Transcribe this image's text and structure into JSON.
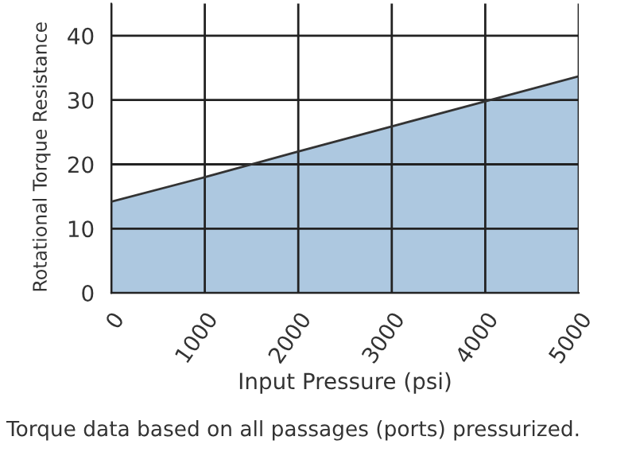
{
  "chart_data": {
    "type": "area",
    "xlabel": "Input Pressure (psi)",
    "ylabel": "Rotational Torque Resistance",
    "x": [
      0,
      1000,
      2000,
      3000,
      4000,
      5000
    ],
    "series": [
      {
        "color": "#adc8e0",
        "values": [
          14.2,
          18.0,
          22.0,
          25.9,
          29.8,
          33.7
        ]
      }
    ],
    "xlim": [
      0,
      5000
    ],
    "xticks": [
      0,
      1000,
      2000,
      3000,
      4000,
      5000
    ],
    "ylim": [
      0,
      45
    ],
    "yticks": [
      0,
      10,
      20,
      30,
      40
    ],
    "grid": true,
    "annotations": [
      "Torque data based on all passages (ports) pressurized."
    ]
  }
}
